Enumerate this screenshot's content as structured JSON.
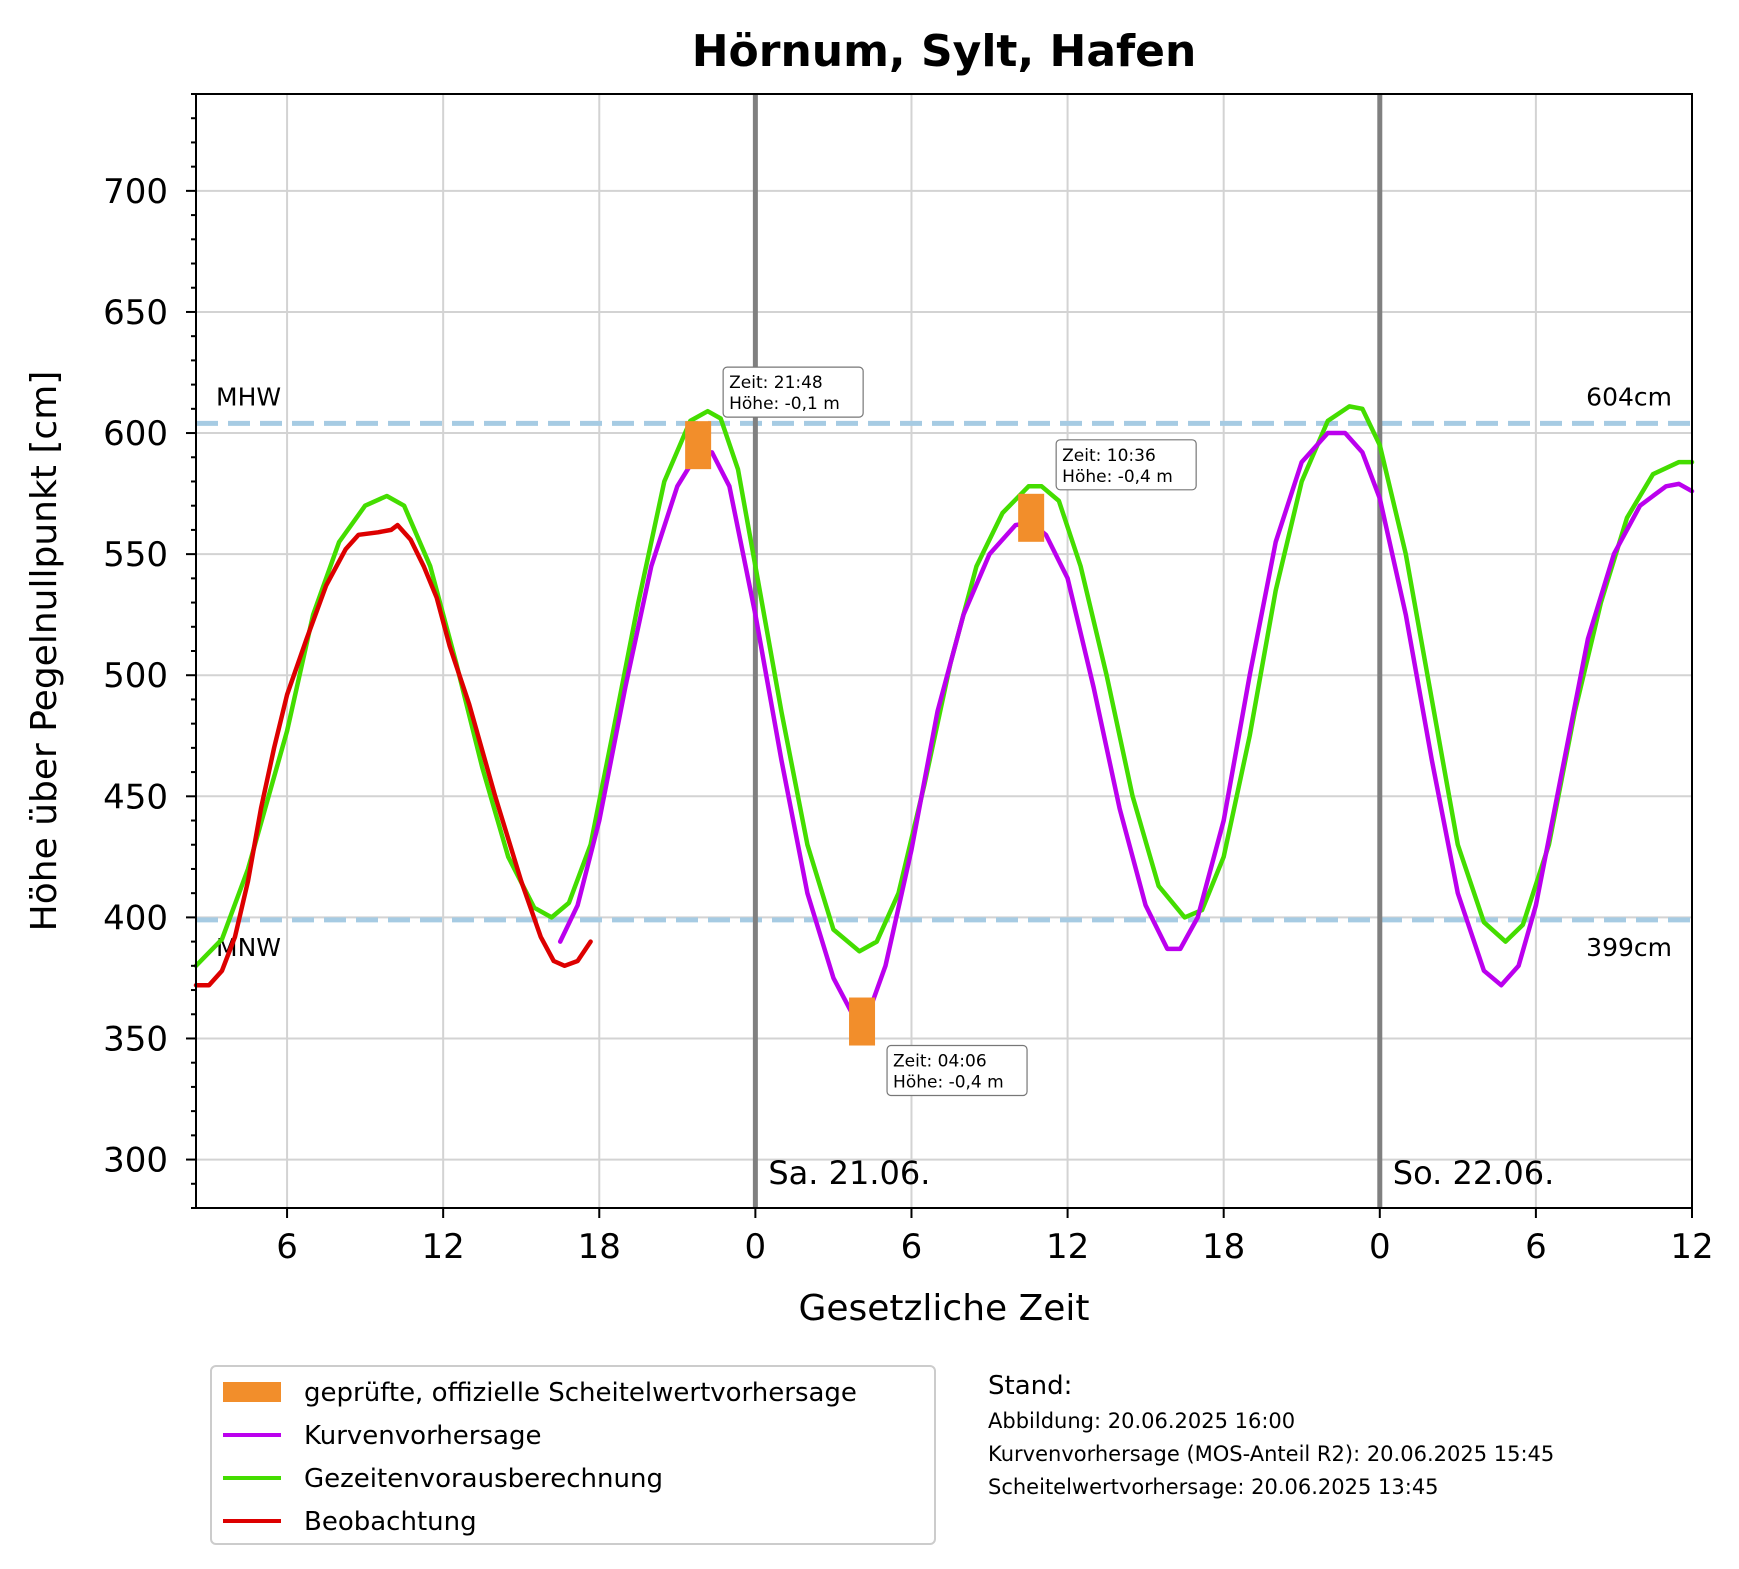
{
  "chart_data": {
    "type": "line",
    "title": "Hörnum, Sylt, Hafen",
    "xlabel": "Gesetzliche Zeit",
    "ylabel": "Höhe über Pegelnullpunkt [cm]",
    "xlim": [
      "2025-06-20 02:30",
      "2025-06-22 12:00"
    ],
    "ylim": [
      280,
      740
    ],
    "x_ticks": [
      {
        "t": "2025-06-20 06:00",
        "label": "6"
      },
      {
        "t": "2025-06-20 12:00",
        "label": "12"
      },
      {
        "t": "2025-06-20 18:00",
        "label": "18"
      },
      {
        "t": "2025-06-21 00:00",
        "label": "0"
      },
      {
        "t": "2025-06-21 06:00",
        "label": "6"
      },
      {
        "t": "2025-06-21 12:00",
        "label": "12"
      },
      {
        "t": "2025-06-21 18:00",
        "label": "18"
      },
      {
        "t": "2025-06-22 00:00",
        "label": "0"
      },
      {
        "t": "2025-06-22 06:00",
        "label": "6"
      },
      {
        "t": "2025-06-22 12:00",
        "label": "12"
      }
    ],
    "y_ticks": [
      300,
      350,
      400,
      450,
      500,
      550,
      600,
      650,
      700
    ],
    "grid": true,
    "day_markers": [
      {
        "t": "2025-06-21 00:00",
        "label": "Sa. 21.06."
      },
      {
        "t": "2025-06-22 00:00",
        "label": "So. 22.06."
      }
    ],
    "reference_lines": [
      {
        "y": 604,
        "left_label": "MHW",
        "right_label": "604cm"
      },
      {
        "y": 399,
        "left_label": "MNW",
        "right_label": "399cm"
      }
    ],
    "series": [
      {
        "name": "Gezeitenvorausberechnung",
        "color": "#44dd00",
        "points": [
          [
            "2025-06-20 02:30",
            380
          ],
          [
            "2025-06-20 03:30",
            391
          ],
          [
            "2025-06-20 04:30",
            420
          ],
          [
            "2025-06-20 06:00",
            477
          ],
          [
            "2025-06-20 07:00",
            525
          ],
          [
            "2025-06-20 08:00",
            555
          ],
          [
            "2025-06-20 09:00",
            570
          ],
          [
            "2025-06-20 09:50",
            574
          ],
          [
            "2025-06-20 10:30",
            570
          ],
          [
            "2025-06-20 11:30",
            545
          ],
          [
            "2025-06-20 12:30",
            505
          ],
          [
            "2025-06-20 13:30",
            462
          ],
          [
            "2025-06-20 14:30",
            425
          ],
          [
            "2025-06-20 15:30",
            404
          ],
          [
            "2025-06-20 16:10",
            400
          ],
          [
            "2025-06-20 16:50",
            406
          ],
          [
            "2025-06-20 17:40",
            430
          ],
          [
            "2025-06-20 18:30",
            475
          ],
          [
            "2025-06-20 19:30",
            530
          ],
          [
            "2025-06-20 20:30",
            580
          ],
          [
            "2025-06-20 21:30",
            605
          ],
          [
            "2025-06-20 22:10",
            609
          ],
          [
            "2025-06-20 22:40",
            606
          ],
          [
            "2025-06-20 23:20",
            585
          ],
          [
            "2025-06-21 00:00",
            545
          ],
          [
            "2025-06-21 01:00",
            485
          ],
          [
            "2025-06-21 02:00",
            430
          ],
          [
            "2025-06-21 03:00",
            395
          ],
          [
            "2025-06-21 04:00",
            386
          ],
          [
            "2025-06-21 04:40",
            390
          ],
          [
            "2025-06-21 05:30",
            410
          ],
          [
            "2025-06-21 06:30",
            455
          ],
          [
            "2025-06-21 07:30",
            505
          ],
          [
            "2025-06-21 08:30",
            545
          ],
          [
            "2025-06-21 09:30",
            567
          ],
          [
            "2025-06-21 10:30",
            578
          ],
          [
            "2025-06-21 11:00",
            578
          ],
          [
            "2025-06-21 11:40",
            572
          ],
          [
            "2025-06-21 12:30",
            545
          ],
          [
            "2025-06-21 13:30",
            500
          ],
          [
            "2025-06-21 14:30",
            450
          ],
          [
            "2025-06-21 15:30",
            413
          ],
          [
            "2025-06-21 16:30",
            400
          ],
          [
            "2025-06-21 17:10",
            403
          ],
          [
            "2025-06-21 18:00",
            425
          ],
          [
            "2025-06-21 19:00",
            475
          ],
          [
            "2025-06-21 20:00",
            535
          ],
          [
            "2025-06-21 21:00",
            580
          ],
          [
            "2025-06-21 22:00",
            605
          ],
          [
            "2025-06-21 22:50",
            611
          ],
          [
            "2025-06-21 23:20",
            610
          ],
          [
            "2025-06-22 00:00",
            595
          ],
          [
            "2025-06-22 01:00",
            550
          ],
          [
            "2025-06-22 02:00",
            490
          ],
          [
            "2025-06-22 03:00",
            430
          ],
          [
            "2025-06-22 04:00",
            398
          ],
          [
            "2025-06-22 04:50",
            390
          ],
          [
            "2025-06-22 05:30",
            397
          ],
          [
            "2025-06-22 06:30",
            430
          ],
          [
            "2025-06-22 07:30",
            485
          ],
          [
            "2025-06-22 08:30",
            530
          ],
          [
            "2025-06-22 09:30",
            565
          ],
          [
            "2025-06-22 10:30",
            583
          ],
          [
            "2025-06-22 11:30",
            588
          ],
          [
            "2025-06-22 12:00",
            588
          ]
        ]
      },
      {
        "name": "Kurvenvorhersage",
        "color": "#bb00ee",
        "points": [
          [
            "2025-06-20 16:30",
            390
          ],
          [
            "2025-06-20 17:10",
            405
          ],
          [
            "2025-06-20 18:00",
            440
          ],
          [
            "2025-06-20 19:00",
            495
          ],
          [
            "2025-06-20 20:00",
            545
          ],
          [
            "2025-06-20 21:00",
            578
          ],
          [
            "2025-06-20 21:48",
            592
          ],
          [
            "2025-06-20 22:20",
            592
          ],
          [
            "2025-06-20 23:00",
            578
          ],
          [
            "2025-06-21 00:00",
            525
          ],
          [
            "2025-06-21 01:00",
            465
          ],
          [
            "2025-06-21 02:00",
            410
          ],
          [
            "2025-06-21 03:00",
            375
          ],
          [
            "2025-06-21 03:50",
            358
          ],
          [
            "2025-06-21 04:20",
            360
          ],
          [
            "2025-06-21 05:00",
            380
          ],
          [
            "2025-06-21 06:00",
            428
          ],
          [
            "2025-06-21 07:00",
            485
          ],
          [
            "2025-06-21 08:00",
            525
          ],
          [
            "2025-06-21 09:00",
            550
          ],
          [
            "2025-06-21 10:00",
            562
          ],
          [
            "2025-06-21 10:36",
            563
          ],
          [
            "2025-06-21 11:10",
            558
          ],
          [
            "2025-06-21 12:00",
            540
          ],
          [
            "2025-06-21 13:00",
            495
          ],
          [
            "2025-06-21 14:00",
            445
          ],
          [
            "2025-06-21 15:00",
            405
          ],
          [
            "2025-06-21 15:50",
            387
          ],
          [
            "2025-06-21 16:20",
            387
          ],
          [
            "2025-06-21 17:00",
            400
          ],
          [
            "2025-06-21 18:00",
            440
          ],
          [
            "2025-06-21 19:00",
            500
          ],
          [
            "2025-06-21 20:00",
            555
          ],
          [
            "2025-06-21 21:00",
            588
          ],
          [
            "2025-06-21 22:00",
            600
          ],
          [
            "2025-06-21 22:40",
            600
          ],
          [
            "2025-06-21 23:20",
            592
          ],
          [
            "2025-06-22 00:00",
            573
          ],
          [
            "2025-06-22 01:00",
            525
          ],
          [
            "2025-06-22 02:00",
            465
          ],
          [
            "2025-06-22 03:00",
            410
          ],
          [
            "2025-06-22 04:00",
            378
          ],
          [
            "2025-06-22 04:40",
            372
          ],
          [
            "2025-06-22 05:20",
            380
          ],
          [
            "2025-06-22 06:00",
            405
          ],
          [
            "2025-06-22 07:00",
            460
          ],
          [
            "2025-06-22 08:00",
            515
          ],
          [
            "2025-06-22 09:00",
            550
          ],
          [
            "2025-06-22 10:00",
            570
          ],
          [
            "2025-06-22 11:00",
            578
          ],
          [
            "2025-06-22 11:30",
            579
          ],
          [
            "2025-06-22 12:00",
            576
          ]
        ]
      },
      {
        "name": "Beobachtung",
        "color": "#dd0000",
        "points": [
          [
            "2025-06-20 02:30",
            372
          ],
          [
            "2025-06-20 03:00",
            372
          ],
          [
            "2025-06-20 03:30",
            378
          ],
          [
            "2025-06-20 04:00",
            392
          ],
          [
            "2025-06-20 04:30",
            415
          ],
          [
            "2025-06-20 05:00",
            445
          ],
          [
            "2025-06-20 05:30",
            470
          ],
          [
            "2025-06-20 06:00",
            492
          ],
          [
            "2025-06-20 06:45",
            515
          ],
          [
            "2025-06-20 07:30",
            537
          ],
          [
            "2025-06-20 08:15",
            552
          ],
          [
            "2025-06-20 08:45",
            558
          ],
          [
            "2025-06-20 09:30",
            559
          ],
          [
            "2025-06-20 10:00",
            560
          ],
          [
            "2025-06-20 10:15",
            562
          ],
          [
            "2025-06-20 10:45",
            556
          ],
          [
            "2025-06-20 11:15",
            545
          ],
          [
            "2025-06-20 11:45",
            532
          ],
          [
            "2025-06-20 12:15",
            512
          ],
          [
            "2025-06-20 13:00",
            488
          ],
          [
            "2025-06-20 14:00",
            450
          ],
          [
            "2025-06-20 15:00",
            415
          ],
          [
            "2025-06-20 15:45",
            392
          ],
          [
            "2025-06-20 16:15",
            382
          ],
          [
            "2025-06-20 16:40",
            380
          ],
          [
            "2025-06-20 17:10",
            382
          ],
          [
            "2025-06-20 17:40",
            390
          ]
        ]
      }
    ],
    "peak_forecasts": [
      {
        "t": "2025-06-20 21:48",
        "value": 595,
        "time_label": "Zeit: 21:48",
        "height_label": "Höhe: -0,1 m",
        "label_side": "above-right"
      },
      {
        "t": "2025-06-21 04:06",
        "value": 357,
        "time_label": "Zeit: 04:06",
        "height_label": "Höhe: -0,4 m",
        "label_side": "below-right"
      },
      {
        "t": "2025-06-21 10:36",
        "value": 565,
        "time_label": "Zeit: 10:36",
        "height_label": "Höhe: -0,4 m",
        "label_side": "above-right"
      }
    ],
    "peak_forecast_color": "#f28e2b",
    "legend": {
      "position": "bottom-left",
      "entries": [
        {
          "label": "geprüfte, offizielle Scheitelwertvorhersage",
          "kind": "patch",
          "color": "#f28e2b"
        },
        {
          "label": "Kurvenvorhersage",
          "kind": "line",
          "color": "#bb00ee"
        },
        {
          "label": "Gezeitenvorausberechnung",
          "kind": "line",
          "color": "#44dd00"
        },
        {
          "label": "Beobachtung",
          "kind": "line",
          "color": "#dd0000"
        }
      ]
    },
    "stand": {
      "title": "Stand:",
      "lines": [
        "Abbildung: 20.06.2025 16:00",
        "Kurvenvorhersage (MOS-Anteil R2): 20.06.2025 15:45",
        "Scheitelwertvorhersage: 20.06.2025 13:45"
      ]
    },
    "reference_line_color": "#a6cbe3",
    "day_marker_color": "#808080",
    "grid_color": "#d3d3d3"
  }
}
